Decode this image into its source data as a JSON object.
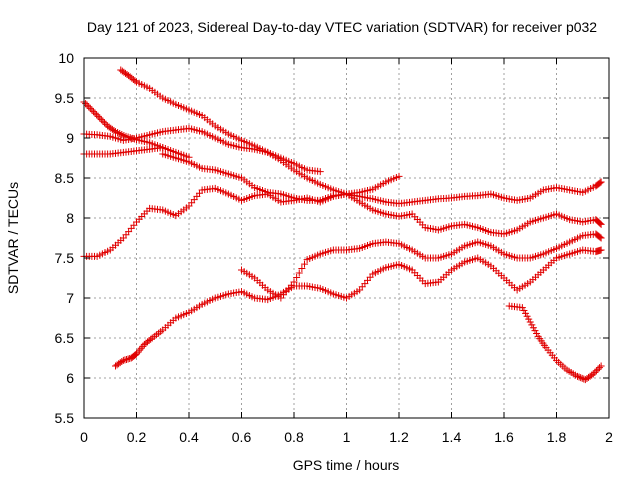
{
  "chart_data": {
    "type": "scatter",
    "title": "Day 121 of 2023, Sidereal Day-to-day VTEC variation (SDTVAR) for receiver p032",
    "xlabel": "GPS time / hours",
    "ylabel": "SDTVAR / TECUs",
    "xlim": [
      0,
      2
    ],
    "ylim": [
      5.5,
      10
    ],
    "xticks": [
      "0",
      "0.2",
      "0.4",
      "0.6",
      "0.8",
      "1",
      "1.2",
      "1.4",
      "1.6",
      "1.8",
      "2"
    ],
    "yticks": [
      "5.5",
      "6",
      "6.5",
      "7",
      "7.5",
      "8",
      "8.5",
      "9",
      "9.5",
      "10"
    ],
    "grid": true,
    "marker": "plus",
    "color": "#e00000",
    "series": [
      {
        "name": "s1",
        "points": [
          [
            0.14,
            9.85
          ],
          [
            0.17,
            9.78
          ],
          [
            0.2,
            9.7
          ],
          [
            0.25,
            9.62
          ],
          [
            0.3,
            9.5
          ],
          [
            0.35,
            9.42
          ],
          [
            0.4,
            9.35
          ],
          [
            0.45,
            9.28
          ],
          [
            0.5,
            9.15
          ],
          [
            0.55,
            9.05
          ],
          [
            0.6,
            8.97
          ],
          [
            0.65,
            8.9
          ],
          [
            0.7,
            8.82
          ],
          [
            0.75,
            8.75
          ],
          [
            0.8,
            8.68
          ],
          [
            0.85,
            8.6
          ],
          [
            0.9,
            8.58
          ]
        ]
      },
      {
        "name": "s2",
        "points": [
          [
            0.0,
            9.45
          ],
          [
            0.03,
            9.35
          ],
          [
            0.06,
            9.25
          ],
          [
            0.09,
            9.15
          ],
          [
            0.12,
            9.08
          ],
          [
            0.16,
            9.02
          ],
          [
            0.2,
            8.98
          ],
          [
            0.25,
            8.94
          ],
          [
            0.3,
            8.88
          ],
          [
            0.35,
            8.82
          ],
          [
            0.4,
            8.76
          ]
        ]
      },
      {
        "name": "s3",
        "points": [
          [
            0.0,
            9.05
          ],
          [
            0.05,
            9.04
          ],
          [
            0.1,
            9.02
          ],
          [
            0.15,
            8.97
          ],
          [
            0.2,
            9.0
          ],
          [
            0.25,
            9.04
          ],
          [
            0.3,
            9.08
          ],
          [
            0.35,
            9.1
          ],
          [
            0.4,
            9.12
          ],
          [
            0.45,
            9.08
          ],
          [
            0.5,
            9.0
          ],
          [
            0.55,
            8.92
          ],
          [
            0.6,
            8.88
          ],
          [
            0.65,
            8.86
          ],
          [
            0.7,
            8.82
          ],
          [
            0.75,
            8.72
          ],
          [
            0.8,
            8.6
          ],
          [
            0.85,
            8.5
          ],
          [
            0.9,
            8.42
          ],
          [
            0.95,
            8.35
          ],
          [
            1.0,
            8.3
          ],
          [
            1.05,
            8.27
          ],
          [
            1.1,
            8.24
          ],
          [
            1.15,
            8.2
          ],
          [
            1.2,
            8.18
          ],
          [
            1.25,
            8.2
          ],
          [
            1.3,
            8.22
          ],
          [
            1.35,
            8.24
          ],
          [
            1.4,
            8.25
          ],
          [
            1.45,
            8.27
          ],
          [
            1.5,
            8.28
          ],
          [
            1.55,
            8.3
          ],
          [
            1.6,
            8.25
          ],
          [
            1.65,
            8.22
          ],
          [
            1.7,
            8.25
          ],
          [
            1.75,
            8.35
          ],
          [
            1.8,
            8.38
          ],
          [
            1.85,
            8.35
          ],
          [
            1.9,
            8.32
          ],
          [
            1.95,
            8.4
          ],
          [
            1.97,
            8.45
          ]
        ]
      },
      {
        "name": "s4",
        "points": [
          [
            0.0,
            8.8
          ],
          [
            0.05,
            8.8
          ],
          [
            0.1,
            8.8
          ],
          [
            0.15,
            8.82
          ],
          [
            0.2,
            8.84
          ],
          [
            0.25,
            8.86
          ],
          [
            0.3,
            8.88
          ]
        ]
      },
      {
        "name": "s5",
        "points": [
          [
            0.3,
            8.8
          ],
          [
            0.35,
            8.75
          ],
          [
            0.4,
            8.7
          ],
          [
            0.45,
            8.62
          ],
          [
            0.5,
            8.6
          ],
          [
            0.55,
            8.55
          ],
          [
            0.6,
            8.5
          ],
          [
            0.65,
            8.38
          ],
          [
            0.7,
            8.32
          ],
          [
            0.75,
            8.3
          ],
          [
            0.8,
            8.25
          ],
          [
            0.85,
            8.22
          ],
          [
            0.9,
            8.22
          ],
          [
            0.95,
            8.28
          ],
          [
            1.0,
            8.3
          ],
          [
            1.05,
            8.32
          ],
          [
            1.1,
            8.36
          ],
          [
            1.15,
            8.45
          ],
          [
            1.2,
            8.52
          ]
        ]
      },
      {
        "name": "s6",
        "points": [
          [
            0.0,
            7.52
          ],
          [
            0.05,
            7.52
          ],
          [
            0.1,
            7.6
          ],
          [
            0.15,
            7.75
          ],
          [
            0.2,
            7.95
          ],
          [
            0.25,
            8.12
          ],
          [
            0.3,
            8.1
          ],
          [
            0.35,
            8.03
          ],
          [
            0.4,
            8.15
          ],
          [
            0.45,
            8.35
          ],
          [
            0.5,
            8.37
          ],
          [
            0.55,
            8.3
          ],
          [
            0.6,
            8.22
          ],
          [
            0.65,
            8.28
          ],
          [
            0.7,
            8.3
          ],
          [
            0.75,
            8.2
          ],
          [
            0.8,
            8.22
          ],
          [
            0.85,
            8.25
          ],
          [
            0.9,
            8.2
          ],
          [
            0.95,
            8.27
          ],
          [
            1.0,
            8.3
          ],
          [
            1.05,
            8.2
          ],
          [
            1.1,
            8.1
          ],
          [
            1.15,
            8.05
          ],
          [
            1.2,
            8.02
          ],
          [
            1.25,
            8.05
          ],
          [
            1.3,
            7.88
          ],
          [
            1.35,
            7.85
          ],
          [
            1.4,
            7.9
          ],
          [
            1.45,
            7.92
          ],
          [
            1.5,
            7.88
          ],
          [
            1.55,
            7.82
          ],
          [
            1.6,
            7.8
          ],
          [
            1.65,
            7.85
          ],
          [
            1.7,
            7.95
          ],
          [
            1.75,
            8.0
          ],
          [
            1.8,
            8.05
          ],
          [
            1.85,
            7.98
          ],
          [
            1.9,
            7.95
          ],
          [
            1.95,
            7.98
          ],
          [
            1.97,
            7.92
          ]
        ]
      },
      {
        "name": "s7",
        "points": [
          [
            0.12,
            6.15
          ],
          [
            0.15,
            6.22
          ],
          [
            0.18,
            6.25
          ],
          [
            0.2,
            6.3
          ],
          [
            0.23,
            6.42
          ],
          [
            0.26,
            6.5
          ],
          [
            0.3,
            6.6
          ],
          [
            0.35,
            6.75
          ],
          [
            0.4,
            6.82
          ],
          [
            0.45,
            6.92
          ],
          [
            0.5,
            7.0
          ],
          [
            0.55,
            7.05
          ],
          [
            0.6,
            7.08
          ],
          [
            0.65,
            7.0
          ],
          [
            0.7,
            6.98
          ],
          [
            0.75,
            7.05
          ],
          [
            0.8,
            7.15
          ],
          [
            0.85,
            7.15
          ],
          [
            0.9,
            7.12
          ],
          [
            0.95,
            7.05
          ],
          [
            1.0,
            7.0
          ],
          [
            1.05,
            7.1
          ],
          [
            1.1,
            7.3
          ],
          [
            1.15,
            7.38
          ],
          [
            1.2,
            7.42
          ],
          [
            1.25,
            7.35
          ],
          [
            1.3,
            7.18
          ],
          [
            1.35,
            7.2
          ],
          [
            1.4,
            7.35
          ],
          [
            1.45,
            7.45
          ],
          [
            1.5,
            7.5
          ],
          [
            1.55,
            7.4
          ],
          [
            1.6,
            7.25
          ],
          [
            1.65,
            7.1
          ],
          [
            1.7,
            7.2
          ],
          [
            1.75,
            7.35
          ],
          [
            1.8,
            7.5
          ],
          [
            1.85,
            7.55
          ],
          [
            1.9,
            7.6
          ],
          [
            1.95,
            7.58
          ],
          [
            1.97,
            7.6
          ]
        ]
      },
      {
        "name": "s8",
        "points": [
          [
            0.6,
            7.35
          ],
          [
            0.65,
            7.25
          ],
          [
            0.7,
            7.1
          ],
          [
            0.75,
            7.0
          ],
          [
            0.8,
            7.2
          ],
          [
            0.85,
            7.48
          ],
          [
            0.9,
            7.55
          ],
          [
            0.95,
            7.6
          ],
          [
            1.0,
            7.6
          ],
          [
            1.05,
            7.62
          ],
          [
            1.1,
            7.68
          ],
          [
            1.15,
            7.7
          ],
          [
            1.2,
            7.68
          ],
          [
            1.25,
            7.6
          ],
          [
            1.3,
            7.5
          ],
          [
            1.35,
            7.5
          ],
          [
            1.4,
            7.55
          ],
          [
            1.45,
            7.65
          ],
          [
            1.5,
            7.7
          ],
          [
            1.55,
            7.65
          ],
          [
            1.6,
            7.55
          ],
          [
            1.65,
            7.5
          ],
          [
            1.7,
            7.5
          ],
          [
            1.75,
            7.55
          ],
          [
            1.8,
            7.62
          ],
          [
            1.85,
            7.7
          ],
          [
            1.9,
            7.78
          ],
          [
            1.95,
            7.8
          ],
          [
            1.97,
            7.75
          ]
        ]
      },
      {
        "name": "s9",
        "points": [
          [
            1.62,
            6.9
          ],
          [
            1.67,
            6.88
          ],
          [
            1.7,
            6.7
          ],
          [
            1.73,
            6.52
          ],
          [
            1.76,
            6.38
          ],
          [
            1.8,
            6.22
          ],
          [
            1.84,
            6.1
          ],
          [
            1.88,
            6.02
          ],
          [
            1.91,
            5.98
          ],
          [
            1.94,
            6.05
          ],
          [
            1.97,
            6.15
          ]
        ]
      }
    ]
  }
}
